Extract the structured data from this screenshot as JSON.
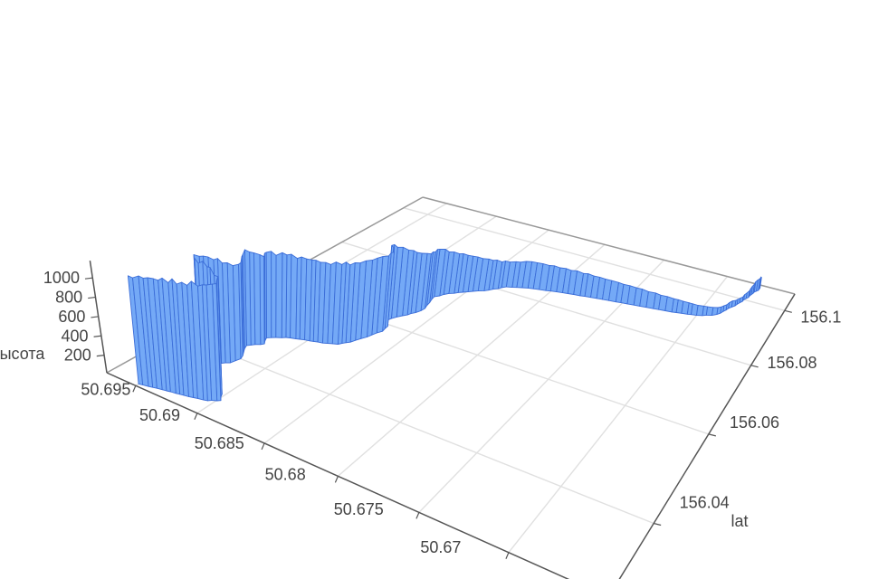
{
  "chart": {
    "background": "#ffffff",
    "bar_fill": "#74a9f6",
    "bar_stroke": "#3b6dd8",
    "grid_color": "#e0e0e0",
    "back_edge_color": "#999999",
    "axis_line_color": "#555555",
    "label_color": "#444444",
    "xaxis": {
      "title": "",
      "ticks": [
        50.695,
        50.69,
        50.685,
        50.68,
        50.675,
        50.67
      ]
    },
    "yaxis": {
      "title": "lat",
      "ticks": [
        156.04,
        156.06,
        156.08,
        156.1
      ]
    },
    "zaxis": {
      "title": "высота",
      "ticks": [
        200,
        400,
        600,
        800,
        1000
      ]
    }
  },
  "chart_data": {
    "type": "bar",
    "subtype": "3d-bar-ribbon-along-track",
    "title": "",
    "xlabel": "",
    "ylabel": "lat",
    "zlabel": "высота",
    "x_ticks": [
      50.695,
      50.69,
      50.685,
      50.68,
      50.675,
      50.67
    ],
    "y_ticks": [
      156.04,
      156.06,
      156.08,
      156.1
    ],
    "z_ticks": [
      200,
      400,
      600,
      800,
      1000
    ],
    "x_range": [
      50.6975,
      50.665
    ],
    "y_range": [
      156.027,
      156.107
    ],
    "z_range": [
      0,
      1250
    ],
    "grid": true,
    "point_format": [
      "lon",
      "lat",
      "height"
    ],
    "points": [
      [
        156.0275,
        50.695,
        1100
      ],
      [
        156.0283,
        50.6934,
        1120
      ],
      [
        156.0291,
        50.6916,
        1140
      ],
      [
        156.0298,
        50.6904,
        1150
      ],
      [
        156.0308,
        50.6898,
        1160
      ],
      [
        156.032,
        50.6902,
        1180
      ],
      [
        156.0332,
        50.6915,
        1190
      ],
      [
        156.034,
        50.6928,
        1200
      ],
      [
        156.0352,
        50.6934,
        1180
      ],
      [
        156.0368,
        50.693,
        1130
      ],
      [
        156.0384,
        50.6922,
        1060
      ],
      [
        156.04,
        50.692,
        1010
      ],
      [
        156.0416,
        50.6924,
        1030
      ],
      [
        156.0432,
        50.6928,
        1050
      ],
      [
        156.045,
        50.692,
        960
      ],
      [
        156.0465,
        50.6924,
        950
      ],
      [
        156.0482,
        50.6914,
        920
      ],
      [
        156.0492,
        50.6902,
        900
      ],
      [
        156.05,
        50.689,
        890
      ],
      [
        156.051,
        50.6881,
        880
      ],
      [
        156.0525,
        50.6876,
        880
      ],
      [
        156.0542,
        50.6873,
        870
      ],
      [
        156.056,
        50.687,
        865
      ],
      [
        156.0578,
        50.6867,
        855
      ],
      [
        156.0595,
        50.6868,
        850
      ],
      [
        156.0605,
        50.6873,
        880
      ],
      [
        156.0618,
        50.6872,
        830
      ],
      [
        156.0635,
        50.6868,
        770
      ],
      [
        156.0655,
        50.6863,
        700
      ],
      [
        156.0675,
        50.6861,
        650
      ],
      [
        156.0696,
        50.6863,
        610
      ],
      [
        156.0717,
        50.6865,
        580
      ],
      [
        156.074,
        50.6859,
        510
      ],
      [
        156.0763,
        50.6849,
        440
      ],
      [
        156.0788,
        50.6838,
        370
      ],
      [
        156.0815,
        50.683,
        310
      ],
      [
        156.0832,
        50.6816,
        330
      ],
      [
        156.085,
        50.6792,
        300
      ],
      [
        156.0864,
        50.6768,
        260
      ],
      [
        156.0877,
        50.6742,
        210
      ],
      [
        156.089,
        50.6716,
        160
      ],
      [
        156.0902,
        50.67,
        120
      ],
      [
        156.0916,
        50.6691,
        95
      ],
      [
        156.0931,
        50.6687,
        75
      ],
      [
        156.0947,
        50.6685,
        65
      ],
      [
        156.0962,
        50.6683,
        75
      ],
      [
        156.0977,
        50.6681,
        60
      ],
      [
        156.0992,
        50.6679,
        55
      ],
      [
        156.1006,
        50.6678,
        70
      ],
      [
        156.1019,
        50.6677,
        90
      ],
      [
        156.1031,
        50.6676,
        115
      ],
      [
        156.1043,
        50.6675,
        140
      ],
      [
        156.1053,
        50.6674,
        155
      ],
      [
        156.1058,
        50.6674,
        135
      ]
    ]
  }
}
